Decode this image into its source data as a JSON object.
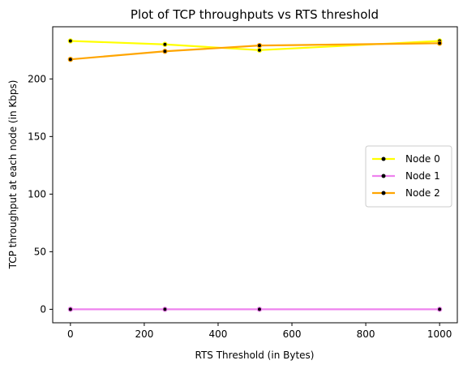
{
  "chart_data": {
    "type": "line",
    "title": "Plot of TCP throughputs vs RTS threshold",
    "xlabel": "RTS Threshold (in Bytes)",
    "ylabel": "TCP throughput at each node (in Kbps)",
    "x": [
      0,
      256,
      512,
      1000
    ],
    "xlim": [
      -48,
      1048
    ],
    "ylim": [
      -11.7,
      245.3
    ],
    "xticks": [
      0,
      200,
      400,
      600,
      800,
      1000
    ],
    "yticks": [
      0,
      50,
      100,
      150,
      200
    ],
    "grid": false,
    "legend_position": "center-right",
    "series": [
      {
        "name": "Node 0",
        "color": "#ffff00",
        "values": [
          233,
          230,
          225,
          233
        ]
      },
      {
        "name": "Node 1",
        "color": "#ee82ee",
        "values": [
          0,
          0,
          0,
          0
        ]
      },
      {
        "name": "Node 2",
        "color": "#ffa500",
        "values": [
          217,
          224,
          229,
          231
        ]
      }
    ]
  }
}
